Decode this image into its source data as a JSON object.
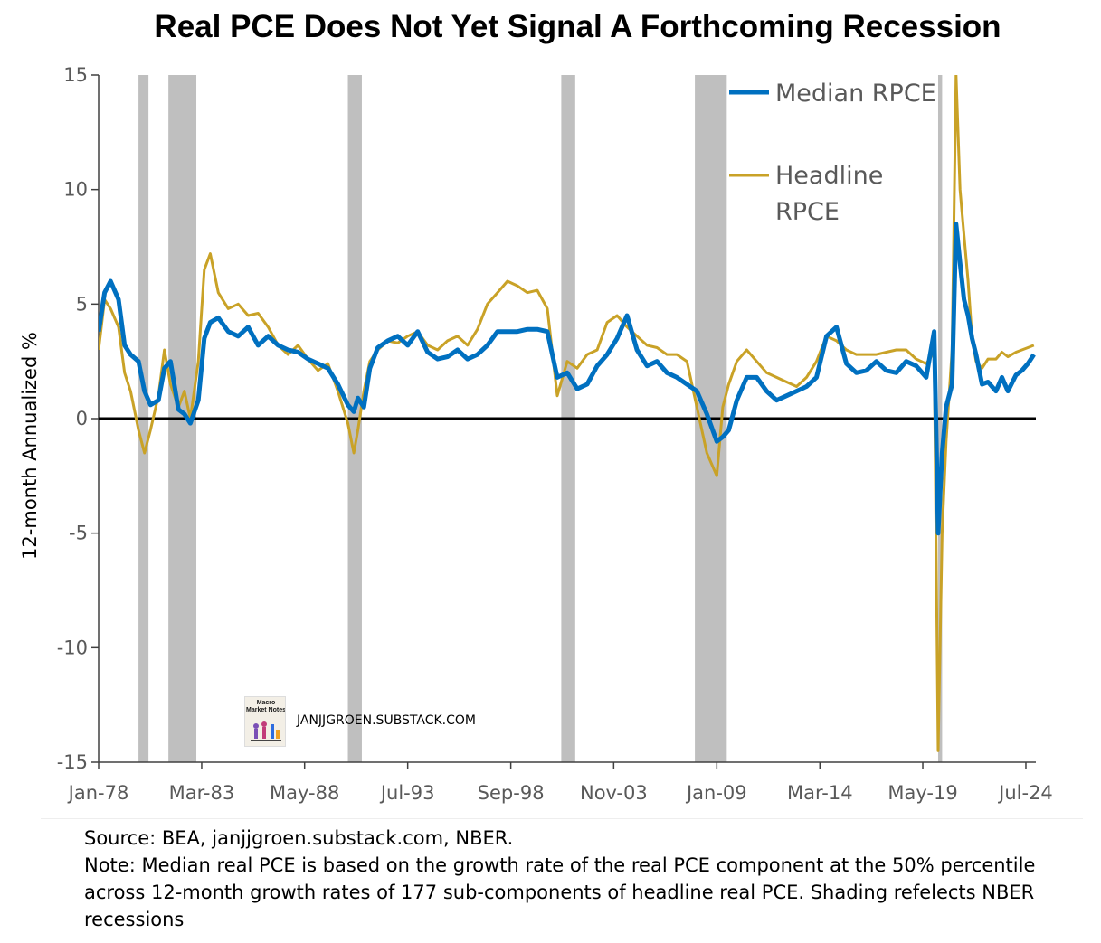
{
  "title": "Real PCE Does Not Yet Signal A Forthcoming Recession",
  "watermark": {
    "logo_text": "Macro Market Notes",
    "label": "JANJJGROEN.SUBSTACK.COM"
  },
  "footer": {
    "source": "Source: BEA, janjjgroen.substack.com, NBER.",
    "note": "Note: Median real PCE is based on the growth rate of the real PCE component at the 50% percentile across 12-month growth rates of 177 sub-components of headline real PCE. Shading refelects NBER recessions"
  },
  "chart_data": {
    "type": "line",
    "title": "Real PCE Does Not Yet Signal A Forthcoming Recession",
    "xlabel": "",
    "ylabel": "12-month Annualized %",
    "xlim": [
      1978.0,
      2025.0
    ],
    "ylim": [
      -15,
      15
    ],
    "yticks": [
      15,
      10,
      5,
      0,
      -5,
      -10,
      -15
    ],
    "xticks": [
      {
        "label": "Jan-78",
        "x": 1978.0
      },
      {
        "label": "Mar-83",
        "x": 1983.17
      },
      {
        "label": "May-88",
        "x": 1988.33
      },
      {
        "label": "Jul-93",
        "x": 1993.5
      },
      {
        "label": "Sep-98",
        "x": 1998.67
      },
      {
        "label": "Nov-03",
        "x": 2003.83
      },
      {
        "label": "Jan-09",
        "x": 2009.0
      },
      {
        "label": "Mar-14",
        "x": 2014.17
      },
      {
        "label": "May-19",
        "x": 2019.33
      },
      {
        "label": "Jul-24",
        "x": 2024.5
      }
    ],
    "zero_line": true,
    "legend": {
      "position": "top-right",
      "entries": [
        "Median RPCE",
        "Headline RPCE"
      ]
    },
    "recessions": [
      [
        1980.0,
        1980.5
      ],
      [
        1981.5,
        1982.9
      ],
      [
        1990.5,
        1991.2
      ],
      [
        2001.2,
        2001.9
      ],
      [
        2007.9,
        2009.5
      ],
      [
        2020.1,
        2020.3
      ]
    ],
    "series": [
      {
        "name": "Median RPCE",
        "color": "#0070c0",
        "x": [
          1978.0,
          1978.3,
          1978.6,
          1979.0,
          1979.3,
          1979.6,
          1980.0,
          1980.3,
          1980.6,
          1981.0,
          1981.3,
          1981.6,
          1982.0,
          1982.3,
          1982.6,
          1983.0,
          1983.3,
          1983.6,
          1984.0,
          1984.5,
          1985.0,
          1985.5,
          1986.0,
          1986.5,
          1987.0,
          1987.5,
          1988.0,
          1988.5,
          1989.0,
          1989.5,
          1990.0,
          1990.5,
          1990.8,
          1991.0,
          1991.3,
          1991.6,
          1992.0,
          1992.5,
          1993.0,
          1993.5,
          1994.0,
          1994.5,
          1995.0,
          1995.5,
          1996.0,
          1996.5,
          1997.0,
          1997.5,
          1998.0,
          1998.5,
          1999.0,
          1999.5,
          2000.0,
          2000.5,
          2001.0,
          2001.5,
          2002.0,
          2002.5,
          2003.0,
          2003.5,
          2004.0,
          2004.5,
          2005.0,
          2005.5,
          2006.0,
          2006.5,
          2007.0,
          2007.5,
          2008.0,
          2008.5,
          2009.0,
          2009.3,
          2009.6,
          2010.0,
          2010.5,
          2011.0,
          2011.5,
          2012.0,
          2012.5,
          2013.0,
          2013.5,
          2014.0,
          2014.5,
          2015.0,
          2015.5,
          2016.0,
          2016.5,
          2017.0,
          2017.5,
          2018.0,
          2018.5,
          2019.0,
          2019.5,
          2019.9,
          2020.1,
          2020.3,
          2020.5,
          2020.8,
          2021.0,
          2021.2,
          2021.4,
          2021.6,
          2021.8,
          2022.0,
          2022.3,
          2022.6,
          2023.0,
          2023.3,
          2023.6,
          2024.0,
          2024.3,
          2024.6,
          2024.9
        ],
        "y": [
          3.8,
          5.5,
          6.0,
          5.2,
          3.2,
          2.8,
          2.5,
          1.2,
          0.6,
          0.8,
          2.2,
          2.5,
          0.4,
          0.2,
          -0.2,
          0.8,
          3.5,
          4.2,
          4.4,
          3.8,
          3.6,
          4.0,
          3.2,
          3.6,
          3.2,
          3.0,
          2.9,
          2.6,
          2.4,
          2.2,
          1.5,
          0.6,
          0.3,
          0.9,
          0.5,
          2.2,
          3.1,
          3.4,
          3.6,
          3.2,
          3.8,
          2.9,
          2.6,
          2.7,
          3.0,
          2.6,
          2.8,
          3.2,
          3.8,
          3.8,
          3.8,
          3.9,
          3.9,
          3.8,
          1.8,
          2.0,
          1.3,
          1.5,
          2.3,
          2.8,
          3.5,
          4.5,
          3.0,
          2.3,
          2.5,
          2.0,
          1.8,
          1.5,
          1.2,
          0.2,
          -1.0,
          -0.8,
          -0.5,
          0.8,
          1.8,
          1.8,
          1.2,
          0.8,
          1.0,
          1.2,
          1.4,
          1.8,
          3.6,
          4.0,
          2.4,
          2.0,
          2.1,
          2.5,
          2.1,
          2.0,
          2.5,
          2.3,
          1.8,
          3.8,
          -5.0,
          -1.5,
          0.5,
          1.5,
          8.5,
          6.8,
          5.2,
          4.5,
          3.5,
          2.8,
          1.5,
          1.6,
          1.2,
          1.8,
          1.2,
          1.9,
          2.1,
          2.4,
          2.8
        ]
      },
      {
        "name": "Headline RPCE",
        "color": "#c9a227",
        "x": [
          1978.0,
          1978.3,
          1978.6,
          1979.0,
          1979.3,
          1979.6,
          1980.0,
          1980.3,
          1980.6,
          1981.0,
          1981.3,
          1981.6,
          1982.0,
          1982.3,
          1982.6,
          1983.0,
          1983.3,
          1983.6,
          1984.0,
          1984.5,
          1985.0,
          1985.5,
          1986.0,
          1986.5,
          1987.0,
          1987.5,
          1988.0,
          1988.5,
          1989.0,
          1989.5,
          1990.0,
          1990.5,
          1990.8,
          1991.0,
          1991.3,
          1991.6,
          1992.0,
          1992.5,
          1993.0,
          1993.5,
          1994.0,
          1994.5,
          1995.0,
          1995.5,
          1996.0,
          1996.5,
          1997.0,
          1997.5,
          1998.0,
          1998.5,
          1999.0,
          1999.5,
          2000.0,
          2000.5,
          2001.0,
          2001.5,
          2002.0,
          2002.5,
          2003.0,
          2003.5,
          2004.0,
          2004.5,
          2005.0,
          2005.5,
          2006.0,
          2006.5,
          2007.0,
          2007.5,
          2008.0,
          2008.5,
          2009.0,
          2009.3,
          2009.6,
          2010.0,
          2010.5,
          2011.0,
          2011.5,
          2012.0,
          2012.5,
          2013.0,
          2013.5,
          2014.0,
          2014.5,
          2015.0,
          2015.5,
          2016.0,
          2016.5,
          2017.0,
          2017.5,
          2018.0,
          2018.5,
          2019.0,
          2019.5,
          2019.9,
          2020.1,
          2020.3,
          2020.5,
          2020.8,
          2021.0,
          2021.2,
          2021.4,
          2021.6,
          2021.8,
          2022.0,
          2022.3,
          2022.6,
          2023.0,
          2023.3,
          2023.6,
          2024.0,
          2024.3,
          2024.6,
          2024.9
        ],
        "y": [
          3.0,
          5.2,
          4.8,
          4.0,
          2.0,
          1.2,
          -0.5,
          -1.5,
          -0.5,
          1.0,
          3.0,
          1.5,
          0.5,
          1.2,
          0.0,
          2.5,
          6.5,
          7.2,
          5.5,
          4.8,
          5.0,
          4.5,
          4.6,
          4.0,
          3.2,
          2.8,
          3.2,
          2.6,
          2.1,
          2.4,
          1.2,
          -0.2,
          -1.5,
          -0.5,
          1.2,
          2.5,
          3.0,
          3.4,
          3.3,
          3.6,
          3.8,
          3.2,
          3.0,
          3.4,
          3.6,
          3.2,
          3.9,
          5.0,
          5.5,
          6.0,
          5.8,
          5.5,
          5.6,
          4.8,
          1.0,
          2.5,
          2.2,
          2.8,
          3.0,
          4.2,
          4.5,
          4.0,
          3.6,
          3.2,
          3.1,
          2.8,
          2.8,
          2.5,
          0.5,
          -1.5,
          -2.5,
          0.5,
          1.5,
          2.5,
          3.0,
          2.5,
          2.0,
          1.8,
          1.6,
          1.4,
          1.8,
          2.5,
          3.6,
          3.4,
          3.0,
          2.8,
          2.8,
          2.8,
          2.9,
          3.0,
          3.0,
          2.6,
          2.4,
          2.9,
          -14.5,
          -5.0,
          -1.0,
          3.0,
          15.0,
          10.0,
          8.0,
          6.0,
          3.5,
          2.5,
          2.2,
          2.6,
          2.6,
          2.9,
          2.7,
          2.9,
          3.0,
          3.1,
          3.2
        ]
      }
    ]
  }
}
